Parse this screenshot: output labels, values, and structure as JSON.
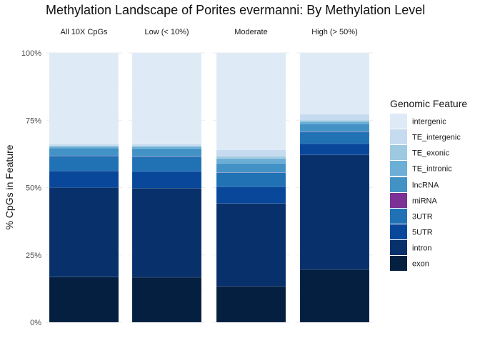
{
  "chart_data": {
    "type": "bar",
    "stacked": true,
    "title": "Methylation Landscape of Porites evermanni: By Methylation Level",
    "xlabel": "",
    "ylabel": "% CpGs in Feature",
    "ylim": [
      0,
      1
    ],
    "yticks": [
      "0%",
      "25%",
      "50%",
      "75%",
      "100%"
    ],
    "ytick_values": [
      0,
      0.25,
      0.5,
      0.75,
      1.0
    ],
    "grid": true,
    "legend_position": "right",
    "legend_title": "Genomic Feature",
    "categories": [
      "All 10X CpGs",
      "Low (< 10%)",
      "Moderate",
      "High (> 50%)"
    ],
    "series": [
      {
        "name": "exon",
        "color": "#041F3F",
        "values": [
          0.168,
          0.167,
          0.133,
          0.195
        ]
      },
      {
        "name": "intron",
        "color": "#08306B",
        "values": [
          0.332,
          0.331,
          0.308,
          0.426
        ]
      },
      {
        "name": "5UTR",
        "color": "#08479A",
        "values": [
          0.062,
          0.062,
          0.062,
          0.042
        ]
      },
      {
        "name": "3UTR",
        "color": "#2171B5",
        "values": [
          0.055,
          0.055,
          0.052,
          0.043
        ]
      },
      {
        "name": "miRNA",
        "color": "#7B3294",
        "values": [
          0.001,
          0.001,
          0.001,
          0.001
        ]
      },
      {
        "name": "lncRNA",
        "color": "#4292C6",
        "values": [
          0.029,
          0.029,
          0.034,
          0.03
        ]
      },
      {
        "name": "TE_intronic",
        "color": "#6BAED6",
        "values": [
          0.006,
          0.007,
          0.018,
          0.008
        ]
      },
      {
        "name": "TE_exonic",
        "color": "#9ECAE1",
        "values": [
          0.003,
          0.003,
          0.008,
          0.005
        ]
      },
      {
        "name": "TE_intergenic",
        "color": "#C6DBEF",
        "values": [
          0.006,
          0.006,
          0.024,
          0.022
        ]
      },
      {
        "name": "intergenic",
        "color": "#DEEBF7",
        "values": [
          0.338,
          0.339,
          0.36,
          0.228
        ]
      }
    ]
  }
}
